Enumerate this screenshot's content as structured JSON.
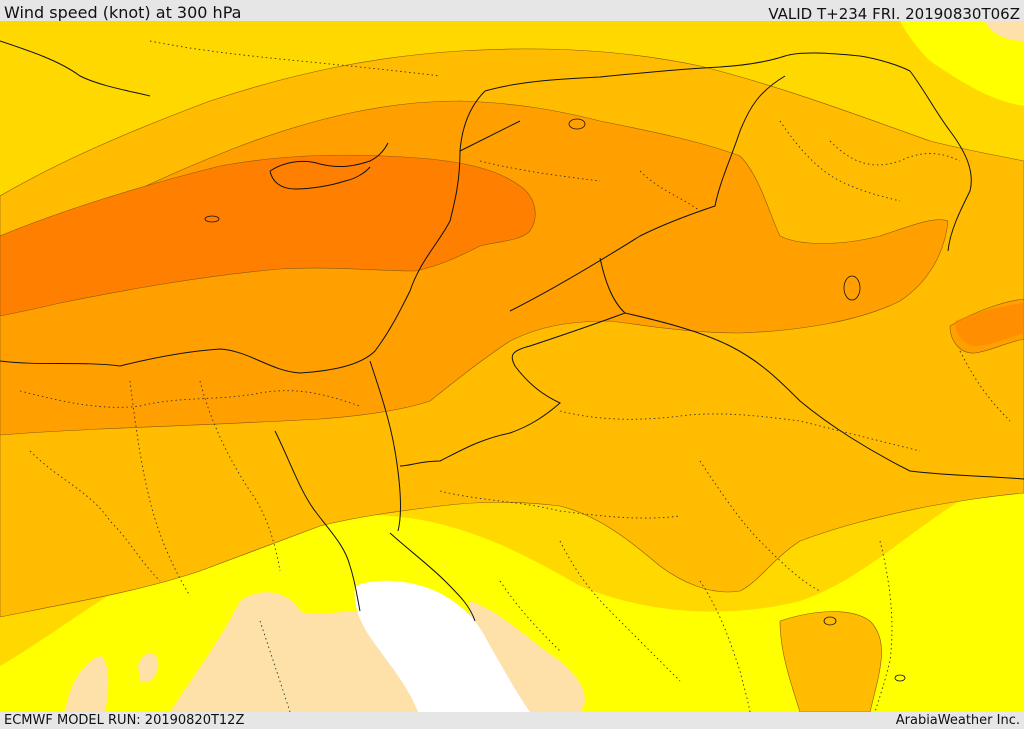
{
  "header": {
    "title": "Wind speed (knot) at 300 hPa",
    "valid": "VALID T+234 FRI. 20190830T06Z"
  },
  "footer": {
    "model_run": "ECMWF MODEL RUN: 20190820T12Z",
    "credit": "ArabiaWeather Inc."
  },
  "colors": {
    "lowest": "#fde1a9",
    "low": "#ffff00",
    "moderate": "#ffd800",
    "strong": "#ffbc00",
    "stronger": "#ffa000",
    "strongest": "#ff7f00",
    "sea_white": "#ffffff"
  }
}
